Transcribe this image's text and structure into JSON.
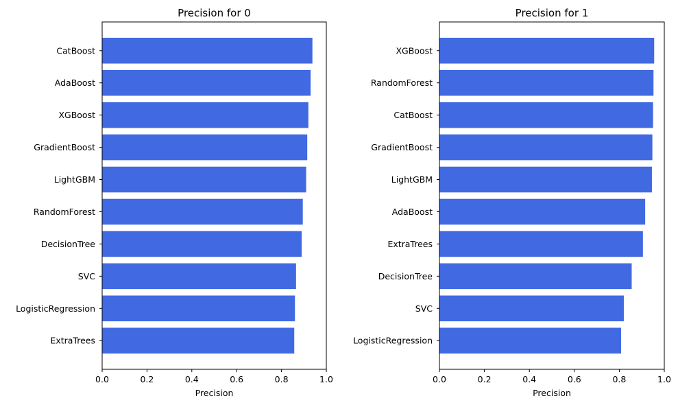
{
  "chart_data": [
    {
      "type": "bar",
      "orientation": "horizontal",
      "title": "Precision for 0",
      "xlabel": "Precision",
      "ylabel": "",
      "xlim": [
        0,
        1.0
      ],
      "xticks": [
        "0.0",
        "0.2",
        "0.4",
        "0.6",
        "0.8",
        "1.0"
      ],
      "categories": [
        "CatBoost",
        "AdaBoost",
        "XGBoost",
        "GradientBoost",
        "LightGBM",
        "RandomForest",
        "DecisionTree",
        "SVC",
        "LogisticRegression",
        "ExtraTrees"
      ],
      "values": [
        0.938,
        0.93,
        0.92,
        0.915,
        0.91,
        0.895,
        0.89,
        0.865,
        0.86,
        0.857
      ],
      "grid": false,
      "bar_color": "#4169E1"
    },
    {
      "type": "bar",
      "orientation": "horizontal",
      "title": "Precision for 1",
      "xlabel": "Precision",
      "ylabel": "",
      "xlim": [
        0,
        1.0
      ],
      "xticks": [
        "0.0",
        "0.2",
        "0.4",
        "0.6",
        "0.8",
        "1.0"
      ],
      "categories": [
        "XGBoost",
        "RandomForest",
        "CatBoost",
        "GradientBoost",
        "LightGBM",
        "AdaBoost",
        "ExtraTrees",
        "DecisionTree",
        "SVC",
        "LogisticRegression"
      ],
      "values": [
        0.955,
        0.952,
        0.95,
        0.947,
        0.945,
        0.915,
        0.905,
        0.855,
        0.82,
        0.808
      ],
      "grid": false,
      "bar_color": "#4169E1"
    }
  ]
}
